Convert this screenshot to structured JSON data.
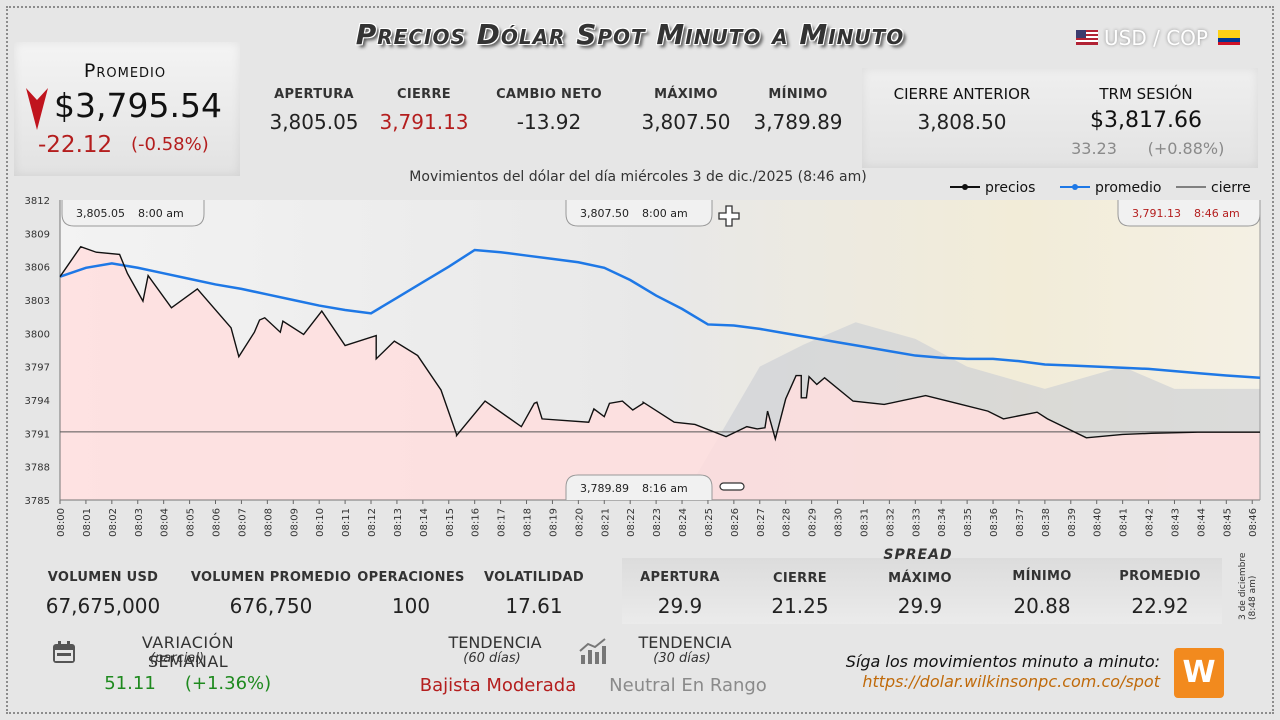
{
  "header": {
    "title": "Precios Dólar Spot Minuto a Minuto",
    "pair": "USD / COP",
    "flag_us": "us-flag-icon",
    "flag_co": "colombia-flag-icon"
  },
  "promedio": {
    "label": "Promedio",
    "value": "$3,795.54",
    "change": "-22.12",
    "change_pct": "(-0.58%)",
    "arrow_icon": "down-arrow-icon"
  },
  "stats_top": [
    {
      "label": "APERTURA",
      "value": "3,805.05",
      "color": "#222222"
    },
    {
      "label": "CIERRE",
      "value": "3,791.13",
      "color": "#b41e1e"
    },
    {
      "label": "CAMBIO NETO",
      "value": "-13.92",
      "color": "#222222"
    },
    {
      "label": "MÁXIMO",
      "value": "3,807.50",
      "color": "#222222"
    },
    {
      "label": "MÍNIMO",
      "value": "3,789.89",
      "color": "#222222"
    }
  ],
  "cierre_anterior": {
    "label": "CIERRE ANTERIOR",
    "value": "3,808.50"
  },
  "trm": {
    "label": "TRM SESIÓN",
    "value": "$3,817.66",
    "change": "33.23",
    "change_pct": "(+0.88%)"
  },
  "chart_data": {
    "type": "line",
    "title": "Movimientos del dólar del día miércoles 3 de dic./2025 (8:46 am)",
    "ylim": [
      3785,
      3812
    ],
    "y_ticks": [
      3812,
      3809,
      3806,
      3803,
      3800,
      3797,
      3794,
      3791,
      3788,
      3785
    ],
    "x_ticks": [
      "08:00",
      "08:01",
      "08:02",
      "08:03",
      "08:04",
      "08:05",
      "08:06",
      "08:07",
      "08:08",
      "08:09",
      "08:10",
      "08:11",
      "08:12",
      "08:13",
      "08:14",
      "08:15",
      "08:16",
      "08:17",
      "08:18",
      "08:19",
      "08:20",
      "08:21",
      "08:22",
      "08:23",
      "08:24",
      "08:25",
      "08:26",
      "08:27",
      "08:28",
      "08:29",
      "08:30",
      "08:31",
      "08:32",
      "08:33",
      "08:34",
      "08:35",
      "08:36",
      "08:37",
      "08:38",
      "08:39",
      "08:40",
      "08:41",
      "08:42",
      "08:43",
      "08:44",
      "08:45",
      "08:46"
    ],
    "xlim": [
      0,
      46.3
    ],
    "legend": {
      "position": "top-right",
      "items": [
        "precios",
        "promedio",
        "cierre"
      ]
    },
    "colors": {
      "precios": "#111111",
      "promedio": "#1e78e6",
      "cierre": "#444444",
      "fill": "#ffdede"
    },
    "series": [
      {
        "name": "precios",
        "x": [
          0,
          0.8,
          1.4,
          1.4,
          2.3,
          2.6,
          3.2,
          3.4,
          3.4,
          4.3,
          5.3,
          6.6,
          6.9,
          7.5,
          7.7,
          7.9,
          7.9,
          8.5,
          8.5,
          8.6,
          8.6,
          9.4,
          10.1,
          11.0,
          12.2,
          12.2,
          12.9,
          13.8,
          14.7,
          15.3,
          15.3,
          16.4,
          17.8,
          18.3,
          18.4,
          18.6,
          20.4,
          20.6,
          21.0,
          21.2,
          21.7,
          22.1,
          22.5,
          22.5,
          23.7,
          24.5,
          25.7,
          26.5,
          26.9,
          27.2,
          27.3,
          27.6,
          28.0,
          28.4,
          28.6,
          28.6,
          28.8,
          28.9,
          29.2,
          29.5,
          30.6,
          31.8,
          33.4,
          34.6,
          35.8,
          36.4,
          37.7,
          38.1,
          39.6,
          41.0,
          42.1,
          43.9,
          45.1,
          46.3
        ],
        "values": [
          3805.1,
          3807.8,
          3807.3,
          3807.3,
          3807.1,
          3805.4,
          3802.9,
          3805.2,
          3805.2,
          3802.3,
          3804.0,
          3800.5,
          3797.9,
          3800.1,
          3801.2,
          3801.4,
          3801.4,
          3800.1,
          3800.1,
          3801.1,
          3801.1,
          3799.9,
          3802.0,
          3798.9,
          3799.8,
          3797.7,
          3799.3,
          3798.0,
          3794.9,
          3790.9,
          3790.8,
          3793.9,
          3791.6,
          3793.7,
          3793.8,
          3792.3,
          3792.0,
          3793.2,
          3792.5,
          3793.7,
          3793.9,
          3793.1,
          3793.7,
          3793.8,
          3792.0,
          3791.8,
          3790.7,
          3791.6,
          3791.4,
          3791.5,
          3793.0,
          3790.5,
          3794.1,
          3796.2,
          3796.2,
          3794.2,
          3794.2,
          3796.1,
          3795.4,
          3796.0,
          3793.9,
          3793.6,
          3794.4,
          3793.7,
          3793.0,
          3792.3,
          3792.9,
          3792.3,
          3790.6,
          3790.9,
          3791.0,
          3791.1,
          3791.1,
          3791.1
        ]
      },
      {
        "name": "promedio",
        "x": [
          0,
          1,
          2,
          3,
          4,
          5,
          6,
          7,
          8,
          9,
          10,
          11,
          12,
          13,
          14,
          15,
          16,
          17,
          18,
          19,
          20,
          21,
          22,
          23,
          24,
          25,
          26,
          27,
          28,
          29,
          30,
          31,
          32,
          33,
          34,
          35,
          36,
          37,
          38,
          39,
          40,
          41,
          42,
          43,
          44,
          45,
          46.3
        ],
        "values": [
          3805.1,
          3805.9,
          3806.3,
          3805.9,
          3805.4,
          3804.9,
          3804.4,
          3804.0,
          3803.5,
          3803.0,
          3802.5,
          3802.1,
          3801.8,
          3803.2,
          3804.6,
          3806.0,
          3807.5,
          3807.3,
          3807.0,
          3806.7,
          3806.4,
          3805.9,
          3804.8,
          3803.4,
          3802.2,
          3800.8,
          3800.7,
          3800.4,
          3800.0,
          3799.6,
          3799.2,
          3798.8,
          3798.4,
          3798.0,
          3797.8,
          3797.7,
          3797.7,
          3797.5,
          3797.2,
          3797.1,
          3797.0,
          3796.9,
          3796.8,
          3796.6,
          3796.4,
          3796.2,
          3796.0
        ]
      },
      {
        "name": "cierre",
        "value": 3791.13
      }
    ],
    "callouts": [
      {
        "value": "3,805.05",
        "time": "8:00 am",
        "color": "#222222"
      },
      {
        "value": "3,807.50",
        "time": "8:00 am",
        "color": "#222222"
      },
      {
        "value": "3,791.13",
        "time": "8:46 am",
        "color": "#b41e1e"
      },
      {
        "value": "3,789.89",
        "time": "8:16 am",
        "color": "#222222"
      }
    ]
  },
  "stats_bottom": [
    {
      "label": "VOLUMEN USD",
      "value": "67,675,000"
    },
    {
      "label": "VOLUMEN PROMEDIO",
      "value": "676,750"
    },
    {
      "label": "OPERACIONES",
      "value": "100"
    },
    {
      "label": "VOLATILIDAD",
      "value": "17.61"
    }
  ],
  "spread": {
    "title": "SPREAD",
    "items": [
      {
        "label": "APERTURA",
        "value": "29.9"
      },
      {
        "label": "CIERRE",
        "value": "21.25"
      },
      {
        "label": "MÁXIMO",
        "value": "29.9"
      },
      {
        "label": "MÍNIMO",
        "value": "20.88"
      },
      {
        "label": "PROMEDIO",
        "value": "22.92"
      }
    ]
  },
  "variacion": {
    "label": "VARIACIÓN SEMANAL",
    "sub": "(parcial)",
    "value": "51.11",
    "pct": "(+1.36%)",
    "icon": "calendar-icon"
  },
  "tendencia60": {
    "label": "TENDENCIA",
    "sub": "(60 días)",
    "value": "Bajista Moderada"
  },
  "tendencia30": {
    "label": "TENDENCIA",
    "sub": "(30 días)",
    "value": "Neutral En Rango",
    "icon": "trend-chart-icon"
  },
  "footer": {
    "line1": "Síga los movimientos minuto a minuto:",
    "link": "https://dolar.wilkinsonpc.com.co/spot",
    "logo": "W",
    "side_date": "3 de diciembre (8:48 am)"
  }
}
